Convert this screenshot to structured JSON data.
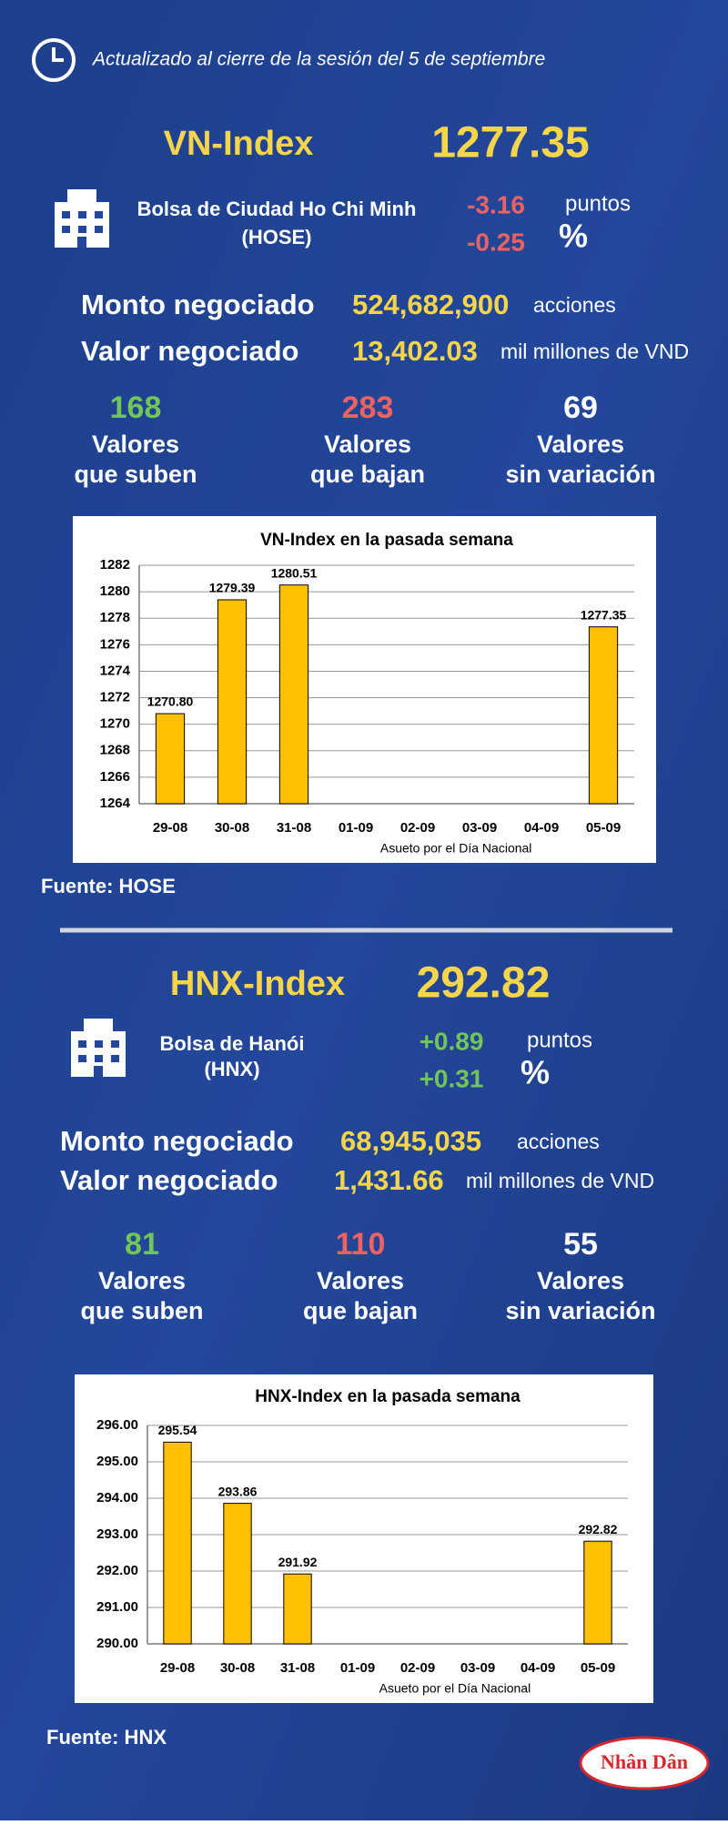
{
  "header": {
    "update": "Actualizado al cierre de la sesión del 5 de septiembre"
  },
  "sections": [
    {
      "index_name": "VN-Index",
      "index_value": "1277.35",
      "exchange": [
        "Bolsa de Ciudad Ho Chi Minh",
        "(HOSE)"
      ],
      "change_points": "-3.16",
      "points_unit": "puntos",
      "change_pct": "-0.25",
      "pct_unit": "%",
      "volume_label": "Monto negociado",
      "volume": "524,682,900",
      "volume_unit": "acciones",
      "value_label": "Valor negociado",
      "value": "13,402.03",
      "value_unit": "mil millones de VND",
      "breadth": [
        {
          "count": "168",
          "label": [
            "Valores",
            "que suben"
          ]
        },
        {
          "count": "283",
          "label": [
            "Valores",
            "que bajan"
          ]
        },
        {
          "count": "69",
          "label": [
            "Valores",
            "sin variación"
          ]
        }
      ],
      "source": "Fuente: HOSE"
    },
    {
      "index_name": "HNX-Index",
      "index_value": "292.82",
      "exchange": [
        "Bolsa de Hanói",
        "(HNX)"
      ],
      "change_points": "+0.89",
      "points_unit": "puntos",
      "change_pct": "+0.31",
      "pct_unit": "%",
      "volume_label": "Monto negociado",
      "volume": "68,945,035",
      "volume_unit": "acciones",
      "value_label": "Valor negociado",
      "value": "1,431.66",
      "value_unit": "mil millones de VND",
      "breadth": [
        {
          "count": "81",
          "label": [
            "Valores",
            "que suben"
          ]
        },
        {
          "count": "110",
          "label": [
            "Valores",
            "que bajan"
          ]
        },
        {
          "count": "55",
          "label": [
            "Valores",
            "sin variación"
          ]
        }
      ],
      "source": "Fuente:  HNX"
    }
  ],
  "chart_data": [
    {
      "type": "bar",
      "title": "VN-Index en la pasada semana",
      "categories": [
        "29-08",
        "30-08",
        "31-08",
        "01-09",
        "02-09",
        "03-09",
        "04-09",
        "05-09"
      ],
      "values": [
        1270.8,
        1279.39,
        1280.51,
        null,
        null,
        null,
        null,
        1277.35
      ],
      "value_labels": [
        "1270.80",
        "1279.39",
        "1280.51",
        null,
        null,
        null,
        null,
        "1277.35"
      ],
      "color": "#ffc000",
      "ylim": [
        1264,
        1282
      ],
      "yticks": [
        1264,
        1266,
        1268,
        1270,
        1272,
        1274,
        1276,
        1278,
        1280,
        1282
      ],
      "grid": true,
      "note": "Asueto por el Día Nacional"
    },
    {
      "type": "bar",
      "title": "HNX-Index en la pasada semana",
      "categories": [
        "29-08",
        "30-08",
        "31-08",
        "01-09",
        "02-09",
        "03-09",
        "04-09",
        "05-09"
      ],
      "values": [
        295.54,
        293.86,
        291.92,
        null,
        null,
        null,
        null,
        292.82
      ],
      "color": "#ffc000",
      "ylim": [
        290,
        296
      ],
      "yticks": [
        {
          "value": 290,
          "label": "290.00"
        },
        {
          "value": 291,
          "label": "291.00"
        },
        {
          "value": 292,
          "label": "292.00"
        },
        {
          "value": 293,
          "label": "293.00"
        },
        {
          "value": 294,
          "label": "294.00"
        },
        {
          "value": 295,
          "label": "295.00"
        },
        {
          "value": 296,
          "label": "296.00"
        }
      ],
      "grid": true,
      "note": "Asueto por el Día Nacional"
    }
  ],
  "logo": "Nhân Dân"
}
